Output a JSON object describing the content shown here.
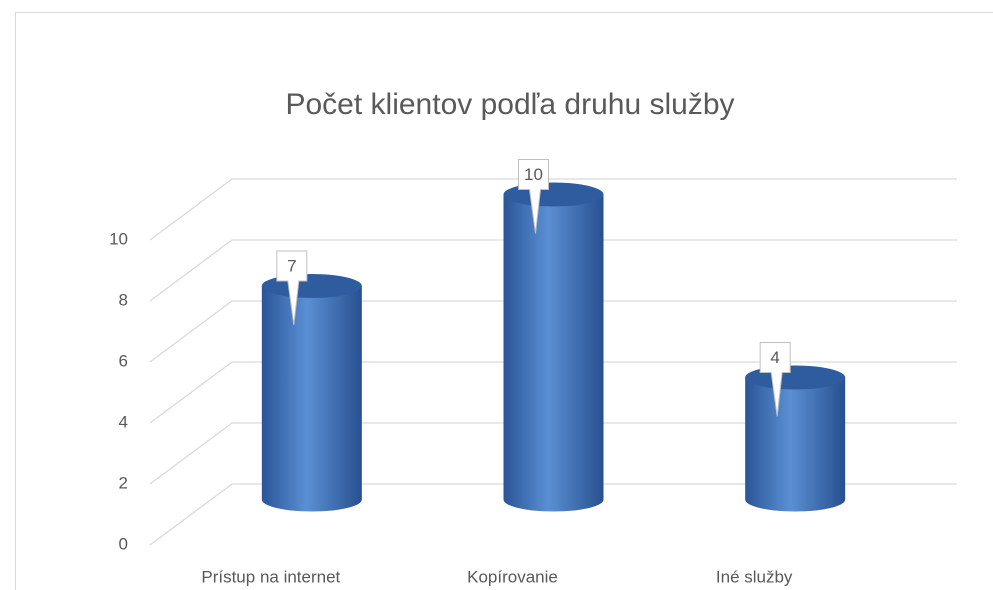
{
  "chart_data": {
    "type": "bar3d",
    "title": "Počet klientov podľa druhu služby",
    "categories": [
      "Prístup na internet",
      "Kopírovanie",
      "Iné služby"
    ],
    "values": [
      7,
      10,
      4
    ],
    "color": "#4a7fc1",
    "ylim": [
      0,
      10
    ],
    "yticks": [
      0,
      2,
      4,
      6,
      8,
      10
    ],
    "grid": true
  }
}
